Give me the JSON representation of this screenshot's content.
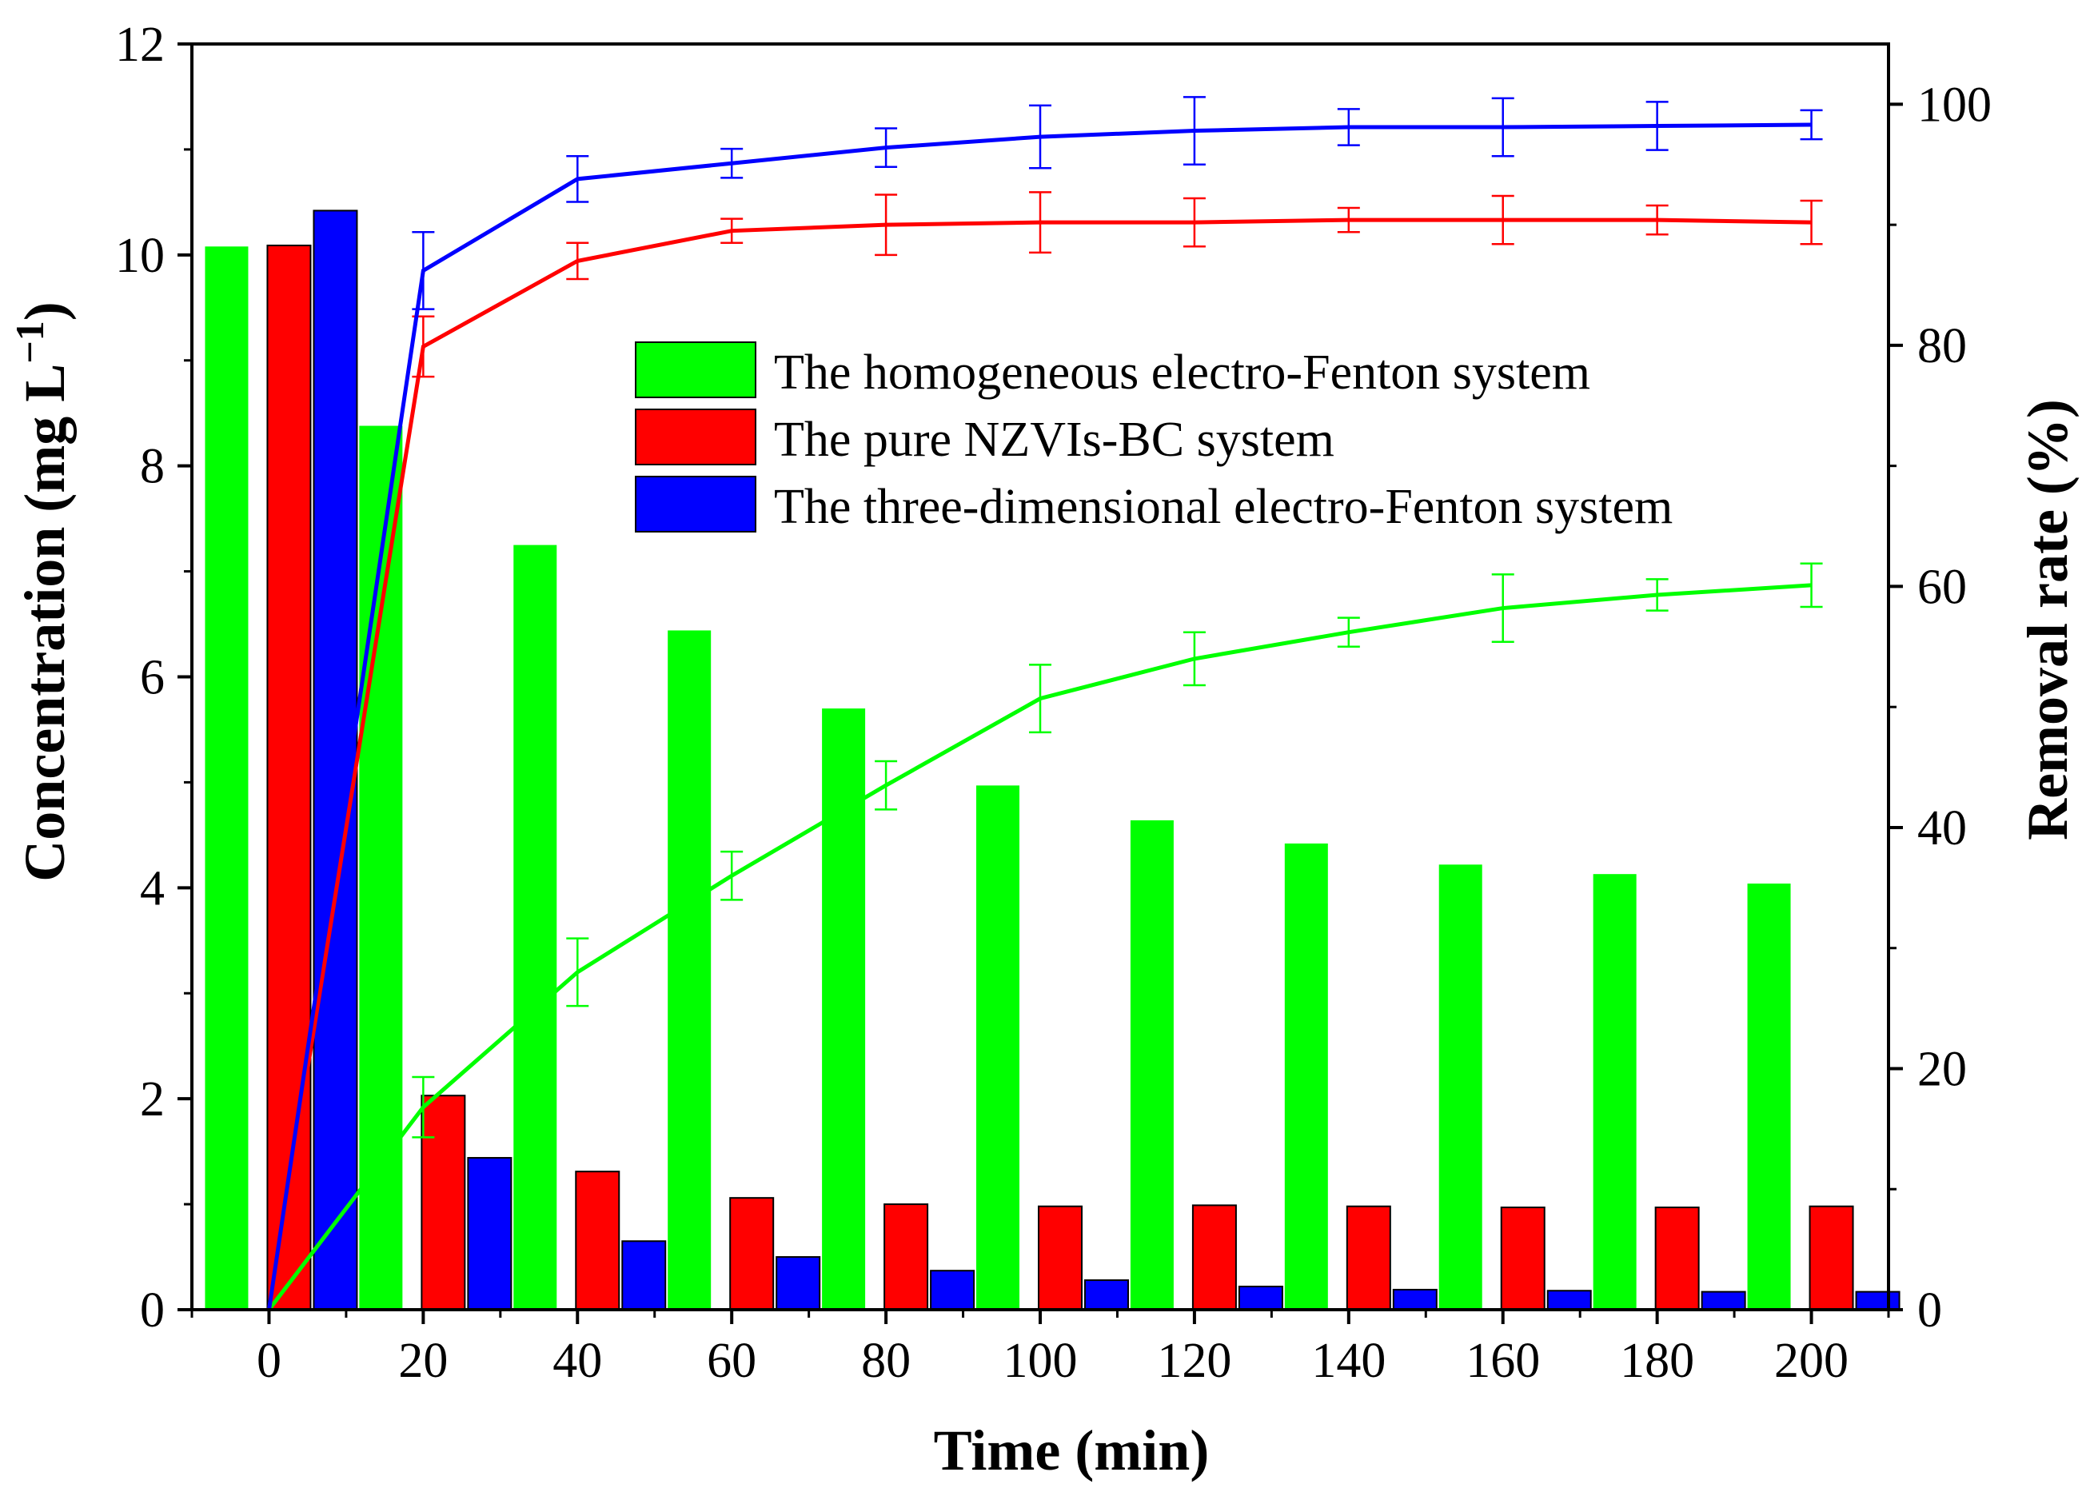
{
  "chart_data": {
    "type": "bar+line",
    "title": "",
    "xlabel": "Time (min)",
    "ylabel_left": {
      "text": "Concentration (mg L",
      "sup": "−1",
      "close": ")"
    },
    "ylabel_right": "Removal rate (%)",
    "x": [
      0,
      20,
      40,
      60,
      80,
      100,
      120,
      140,
      160,
      180,
      200
    ],
    "x_ticks": [
      "0",
      "20",
      "40",
      "60",
      "80",
      "100",
      "120",
      "140",
      "160",
      "180",
      "200"
    ],
    "xlim": [
      -10,
      210
    ],
    "ylim_left": [
      0,
      12
    ],
    "y_left_ticks": [
      "0",
      "2",
      "4",
      "6",
      "8",
      "10",
      "12"
    ],
    "ylim_right": [
      0,
      105
    ],
    "y_right_ticks": [
      "0",
      "20",
      "40",
      "60",
      "80",
      "100"
    ],
    "legend_position": "upper-center",
    "series": [
      {
        "name": "The homogeneous electro-Fenton system",
        "color": "#00ff00",
        "concentration": [
          10.08,
          8.38,
          7.25,
          6.44,
          5.7,
          4.97,
          4.64,
          4.42,
          4.22,
          4.13,
          4.04
        ],
        "removal_rate": [
          0,
          16.8,
          28,
          36,
          43.5,
          50.7,
          54,
          56.2,
          58.2,
          59.3,
          60.1
        ],
        "removal_error": [
          0,
          2.5,
          2.8,
          2,
          2,
          2.8,
          2.2,
          1.2,
          2.8,
          1.3,
          1.8
        ]
      },
      {
        "name": "The pure NZVIs-BC system",
        "color": "#ff0000",
        "concentration": [
          10.09,
          2.03,
          1.31,
          1.06,
          1.0,
          0.98,
          0.99,
          0.98,
          0.97,
          0.97,
          0.98
        ],
        "removal_rate": [
          0,
          79.9,
          87,
          89.5,
          90,
          90.2,
          90.2,
          90.4,
          90.4,
          90.4,
          90.2
        ],
        "removal_error": [
          0,
          2.5,
          1.5,
          1,
          2.5,
          2.5,
          2,
          1,
          2,
          1.2,
          1.8
        ]
      },
      {
        "name": "The three-dimensional electro-Fenton system",
        "color": "#0000ff",
        "concentration": [
          10.42,
          1.44,
          0.65,
          0.5,
          0.37,
          0.28,
          0.22,
          0.19,
          0.18,
          0.17,
          0.17
        ],
        "removal_rate": [
          0,
          86.2,
          93.8,
          95.1,
          96.4,
          97.3,
          97.8,
          98.1,
          98.1,
          98.2,
          98.3
        ],
        "removal_error": [
          0,
          3.2,
          1.9,
          1.2,
          1.6,
          2.6,
          2.8,
          1.5,
          2.4,
          2,
          1.2
        ]
      }
    ]
  }
}
